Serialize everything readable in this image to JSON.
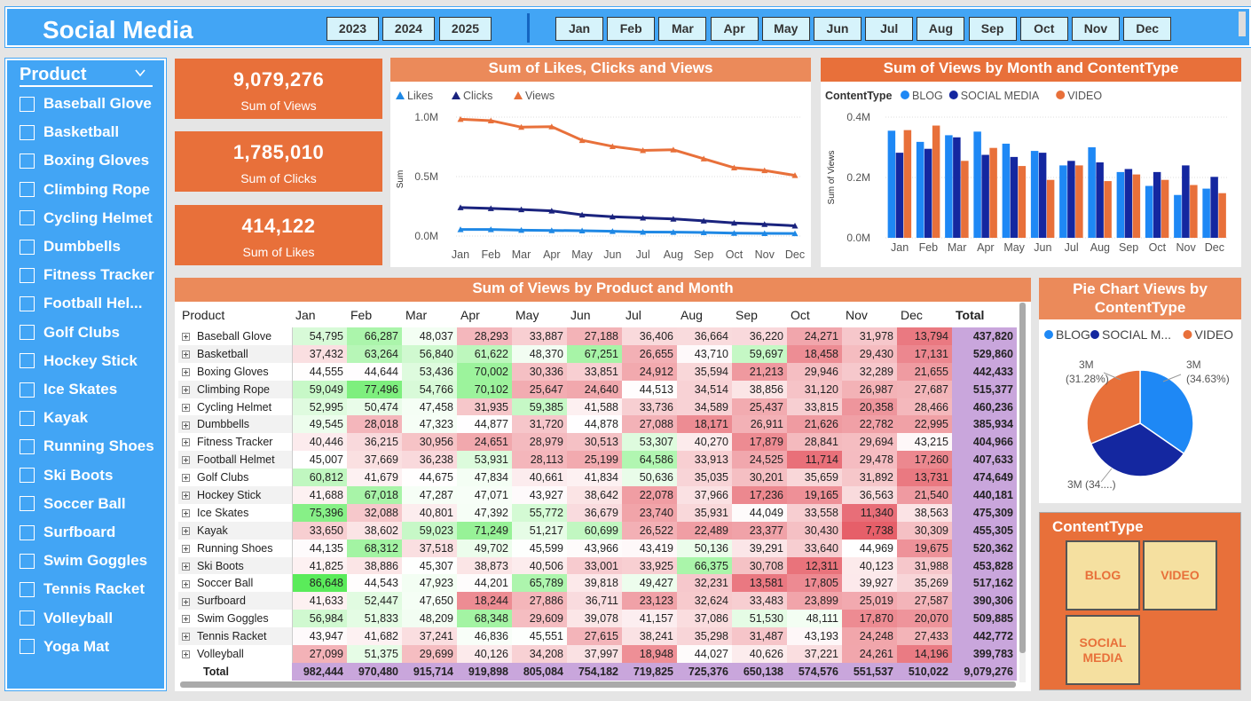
{
  "header": {
    "title": "Social Media",
    "years": [
      "2023",
      "2024",
      "2025"
    ],
    "months": [
      "Jan",
      "Feb",
      "Mar",
      "Apr",
      "May",
      "Jun",
      "Jul",
      "Aug",
      "Sep",
      "Oct",
      "Nov",
      "Dec"
    ]
  },
  "slicer": {
    "title": "Product",
    "items": [
      "Baseball Glove",
      "Basketball",
      "Boxing Gloves",
      "Climbing Rope",
      "Cycling Helmet",
      "Dumbbells",
      "Fitness Tracker",
      "Football Hel...",
      "Golf Clubs",
      "Hockey Stick",
      "Ice Skates",
      "Kayak",
      "Running Shoes",
      "Ski Boots",
      "Soccer Ball",
      "Surfboard",
      "Swim Goggles",
      "Tennis Racket",
      "Volleyball",
      "Yoga Mat"
    ]
  },
  "kpis": [
    {
      "value": "9,079,276",
      "label": "Sum of Views"
    },
    {
      "value": "1,785,010",
      "label": "Sum of Clicks"
    },
    {
      "value": "414,122",
      "label": "Sum of Likes"
    }
  ],
  "colors": {
    "likes": "#1e88e5",
    "clicks": "#1a237e",
    "views": "#e8703a",
    "blog": "#1e88f5",
    "social": "#1427a0",
    "video": "#e8703a",
    "accent": "#42a5f5",
    "orange": "#e8703a"
  },
  "chart_data": [
    {
      "type": "line",
      "title": "Sum of Likes, Clicks and Views",
      "xlabel": "",
      "ylabel": "Sum",
      "x": [
        "Jan",
        "Feb",
        "Mar",
        "Apr",
        "May",
        "Jun",
        "Jul",
        "Aug",
        "Sep",
        "Oct",
        "Nov",
        "Dec"
      ],
      "yticks": [
        "1.0M",
        "0.5M",
        "0.0M"
      ],
      "ylim": [
        0,
        1000000
      ],
      "legend": "top-left",
      "series": [
        {
          "name": "Likes",
          "values": [
            55000,
            55000,
            49000,
            47000,
            45000,
            40000,
            34000,
            33000,
            30000,
            24000,
            22000,
            21000
          ]
        },
        {
          "name": "Clicks",
          "values": [
            240000,
            232000,
            223000,
            212000,
            178000,
            162000,
            153000,
            144000,
            128000,
            110000,
            99000,
            86000
          ]
        },
        {
          "name": "Views",
          "values": [
            982444,
            970480,
            915714,
            919898,
            805084,
            754182,
            719825,
            725376,
            650138,
            574576,
            551537,
            510022
          ]
        }
      ]
    },
    {
      "type": "bar",
      "title": "Sum of Views by Month and ContentType",
      "legend_title": "ContentType",
      "ylabel": "Sum of Views",
      "categories": [
        "Jan",
        "Feb",
        "Mar",
        "Apr",
        "May",
        "Jun",
        "Jul",
        "Aug",
        "Sep",
        "Oct",
        "Nov",
        "Dec"
      ],
      "yticks": [
        "0.4M",
        "0.2M",
        "0.0M"
      ],
      "ylim": [
        0,
        400000
      ],
      "grid": true,
      "series": [
        {
          "name": "BLOG",
          "values": [
            355000,
            318000,
            340000,
            352000,
            312000,
            288000,
            240000,
            300000,
            218000,
            172000,
            142000,
            163000
          ]
        },
        {
          "name": "SOCIAL MEDIA",
          "values": [
            282000,
            295000,
            333000,
            275000,
            268000,
            282000,
            255000,
            250000,
            228000,
            218000,
            240000,
            202000
          ]
        },
        {
          "name": "VIDEO",
          "values": [
            357000,
            372000,
            255000,
            298000,
            238000,
            192000,
            240000,
            188000,
            210000,
            192000,
            175000,
            148000
          ]
        }
      ]
    },
    {
      "type": "table",
      "title": "Sum of Views by Product and Month",
      "columns": [
        "Product",
        "Jan",
        "Feb",
        "Mar",
        "Apr",
        "May",
        "Jun",
        "Jul",
        "Aug",
        "Sep",
        "Oct",
        "Nov",
        "Dec",
        "Total"
      ],
      "rows": [
        [
          "Baseball Glove",
          "54,795",
          "66,287",
          "48,037",
          "28,293",
          "33,887",
          "27,188",
          "36,406",
          "36,664",
          "36,220",
          "24,271",
          "31,978",
          "13,794",
          "437,820"
        ],
        [
          "Basketball",
          "37,432",
          "63,264",
          "56,840",
          "61,622",
          "48,370",
          "67,251",
          "26,655",
          "43,710",
          "59,697",
          "18,458",
          "29,430",
          "17,131",
          "529,860"
        ],
        [
          "Boxing Gloves",
          "44,555",
          "44,644",
          "53,436",
          "70,002",
          "30,336",
          "33,851",
          "24,912",
          "35,594",
          "21,213",
          "29,946",
          "32,289",
          "21,655",
          "442,433"
        ],
        [
          "Climbing Rope",
          "59,049",
          "77,496",
          "54,766",
          "70,102",
          "25,647",
          "24,640",
          "44,513",
          "34,514",
          "38,856",
          "31,120",
          "26,987",
          "27,687",
          "515,377"
        ],
        [
          "Cycling Helmet",
          "52,995",
          "50,474",
          "47,458",
          "31,935",
          "59,385",
          "41,588",
          "33,736",
          "34,589",
          "25,437",
          "33,815",
          "20,358",
          "28,466",
          "460,236"
        ],
        [
          "Dumbbells",
          "49,545",
          "28,018",
          "47,323",
          "44,877",
          "31,720",
          "44,878",
          "27,088",
          "18,171",
          "26,911",
          "21,626",
          "22,782",
          "22,995",
          "385,934"
        ],
        [
          "Fitness Tracker",
          "40,446",
          "36,215",
          "30,956",
          "24,651",
          "28,979",
          "30,513",
          "53,307",
          "40,270",
          "17,879",
          "28,841",
          "29,694",
          "43,215",
          "404,966"
        ],
        [
          "Football Helmet",
          "45,007",
          "37,669",
          "36,238",
          "53,931",
          "28,113",
          "25,199",
          "64,586",
          "33,913",
          "24,525",
          "11,714",
          "29,478",
          "17,260",
          "407,633"
        ],
        [
          "Golf Clubs",
          "60,812",
          "41,679",
          "44,675",
          "47,834",
          "40,661",
          "41,834",
          "50,636",
          "35,035",
          "30,201",
          "35,659",
          "31,892",
          "13,731",
          "474,649"
        ],
        [
          "Hockey Stick",
          "41,688",
          "67,018",
          "47,287",
          "47,071",
          "43,927",
          "38,642",
          "22,078",
          "37,966",
          "17,236",
          "19,165",
          "36,563",
          "21,540",
          "440,181"
        ],
        [
          "Ice Skates",
          "75,396",
          "32,088",
          "40,801",
          "47,392",
          "55,772",
          "36,679",
          "23,740",
          "35,931",
          "44,049",
          "33,558",
          "11,340",
          "38,563",
          "475,309"
        ],
        [
          "Kayak",
          "33,650",
          "38,602",
          "59,023",
          "71,249",
          "51,217",
          "60,699",
          "26,522",
          "22,489",
          "23,377",
          "30,430",
          "7,738",
          "30,309",
          "455,305"
        ],
        [
          "Running Shoes",
          "44,135",
          "68,312",
          "37,518",
          "49,702",
          "45,599",
          "43,966",
          "43,419",
          "50,136",
          "39,291",
          "33,640",
          "44,969",
          "19,675",
          "520,362"
        ],
        [
          "Ski Boots",
          "41,825",
          "38,886",
          "45,307",
          "38,873",
          "40,506",
          "33,001",
          "33,925",
          "66,375",
          "30,708",
          "12,311",
          "40,123",
          "31,988",
          "453,828"
        ],
        [
          "Soccer Ball",
          "86,648",
          "44,543",
          "47,923",
          "44,201",
          "65,789",
          "39,818",
          "49,427",
          "32,231",
          "13,581",
          "17,805",
          "39,927",
          "35,269",
          "517,162"
        ],
        [
          "Surfboard",
          "41,633",
          "52,447",
          "47,650",
          "18,244",
          "27,886",
          "36,711",
          "23,123",
          "32,624",
          "33,483",
          "23,899",
          "25,019",
          "27,587",
          "390,306"
        ],
        [
          "Swim Goggles",
          "56,984",
          "51,833",
          "48,209",
          "68,348",
          "29,609",
          "39,078",
          "41,157",
          "37,086",
          "51,530",
          "48,111",
          "17,870",
          "20,070",
          "509,885"
        ],
        [
          "Tennis Racket",
          "43,947",
          "41,682",
          "37,241",
          "46,836",
          "45,551",
          "27,615",
          "38,241",
          "35,298",
          "31,487",
          "43,193",
          "24,248",
          "27,433",
          "442,772"
        ],
        [
          "Volleyball",
          "27,099",
          "51,375",
          "29,699",
          "40,126",
          "34,208",
          "37,997",
          "18,948",
          "44,027",
          "40,626",
          "37,221",
          "24,261",
          "14,196",
          "399,783"
        ]
      ],
      "total_row": [
        "Total",
        "982,444",
        "970,480",
        "915,714",
        "919,898",
        "805,084",
        "754,182",
        "719,825",
        "725,376",
        "650,138",
        "574,576",
        "551,537",
        "510,022",
        "9,079,276"
      ]
    },
    {
      "type": "pie",
      "title": "Pie Chart Views by ContentType",
      "labels": [
        "BLOG",
        "SOCIAL M...",
        "VIDEO"
      ],
      "values": [
        34.63,
        34.09,
        31.28
      ],
      "slice_labels": [
        {
          "line1": "3M",
          "line2": "(34.63%)"
        },
        {
          "line1": "3M (34....)",
          "line2": ""
        },
        {
          "line1": "3M",
          "line2": "(31.28%)"
        }
      ]
    }
  ],
  "content_type": {
    "title": "ContentType",
    "buttons": [
      "BLOG",
      "VIDEO",
      "SOCIAL MEDIA"
    ]
  }
}
